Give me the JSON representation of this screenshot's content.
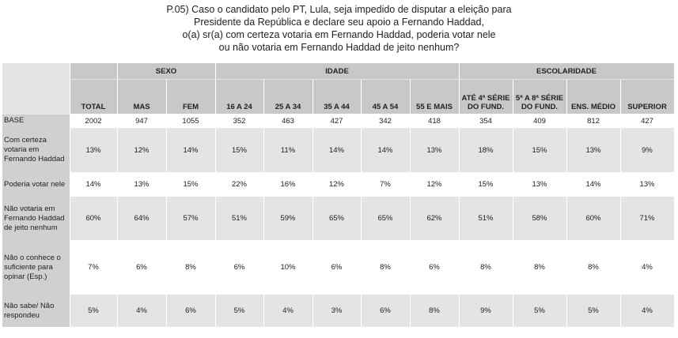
{
  "title": [
    "P.05) Caso o candidato pelo PT, Lula, seja impedido de disputar a eleição para",
    "Presidente da República e declare seu apoio a Fernando Haddad,",
    "o(a) sr(a) com certeza votaria em Fernando Haddad, poderia votar nele",
    "ou não votaria em Fernando Haddad de jeito nenhum?"
  ],
  "groups": {
    "sexo": "SEXO",
    "idade": "IDADE",
    "escolaridade": "ESCOLARIDADE"
  },
  "columns": [
    "TOTAL",
    "MAS",
    "FEM",
    "16 A 24",
    "25 A 34",
    "35 A 44",
    "45 A 54",
    "55 E MAIS",
    "ATÉ 4ª SÉRIE DO FUND.",
    "5ª A 8ª SÉRIE DO FUND.",
    "ENS. MÉDIO",
    "SUPERIOR"
  ],
  "rows": [
    {
      "label": "BASE",
      "values": [
        "2002",
        "947",
        "1055",
        "352",
        "463",
        "427",
        "342",
        "418",
        "354",
        "409",
        "812",
        "427"
      ]
    },
    {
      "label": "Com certeza votaria em Fernando Haddad",
      "values": [
        "13%",
        "12%",
        "14%",
        "15%",
        "11%",
        "14%",
        "14%",
        "13%",
        "18%",
        "15%",
        "13%",
        "9%"
      ]
    },
    {
      "label": "Poderia votar nele",
      "values": [
        "14%",
        "13%",
        "15%",
        "22%",
        "16%",
        "12%",
        "7%",
        "12%",
        "15%",
        "13%",
        "14%",
        "13%"
      ]
    },
    {
      "label": "Não votaria em Fernando Haddad de jeito nenhum",
      "values": [
        "60%",
        "64%",
        "57%",
        "51%",
        "59%",
        "65%",
        "65%",
        "62%",
        "51%",
        "58%",
        "60%",
        "71%"
      ]
    },
    {
      "label": "Não o conhece o suficiente para opinar (Esp.)",
      "values": [
        "7%",
        "6%",
        "8%",
        "6%",
        "10%",
        "6%",
        "8%",
        "6%",
        "8%",
        "8%",
        "8%",
        "4%"
      ]
    },
    {
      "label": "Não sabe/ Não respondeu",
      "values": [
        "5%",
        "4%",
        "6%",
        "5%",
        "4%",
        "3%",
        "6%",
        "8%",
        "9%",
        "5%",
        "5%",
        "4%"
      ]
    }
  ]
}
